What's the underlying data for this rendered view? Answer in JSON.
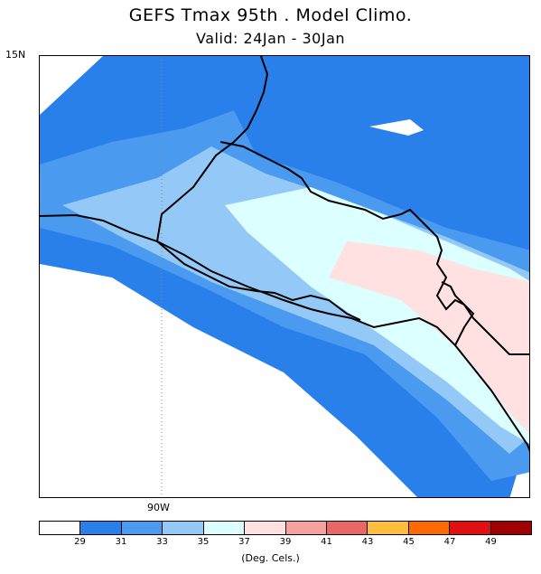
{
  "title": "GEFS Tmax 95th . Model Climo.",
  "subtitle": "Valid: 24Jan - 30Jan",
  "lat_label": "15N",
  "lon_label": "90W",
  "units": "(Deg. Cels.)",
  "legend": {
    "colors": [
      "#ffffff",
      "#2a80ea",
      "#4a9af0",
      "#94c9f7",
      "#dcffff",
      "#ffe1e1",
      "#f7a0a0",
      "#e86868",
      "#fcbe3c",
      "#ff6a00",
      "#e01010",
      "#a00000"
    ],
    "ticks": [
      "29",
      "31",
      "33",
      "35",
      "37",
      "39",
      "41",
      "43",
      "45",
      "47",
      "49"
    ]
  },
  "colors": {
    "c29_31": "#2a80ea",
    "c31_33": "#4a9af0",
    "c33_35": "#94c9f7",
    "c35_37": "#dcffff",
    "c37_39": "#ffe1e1"
  }
}
